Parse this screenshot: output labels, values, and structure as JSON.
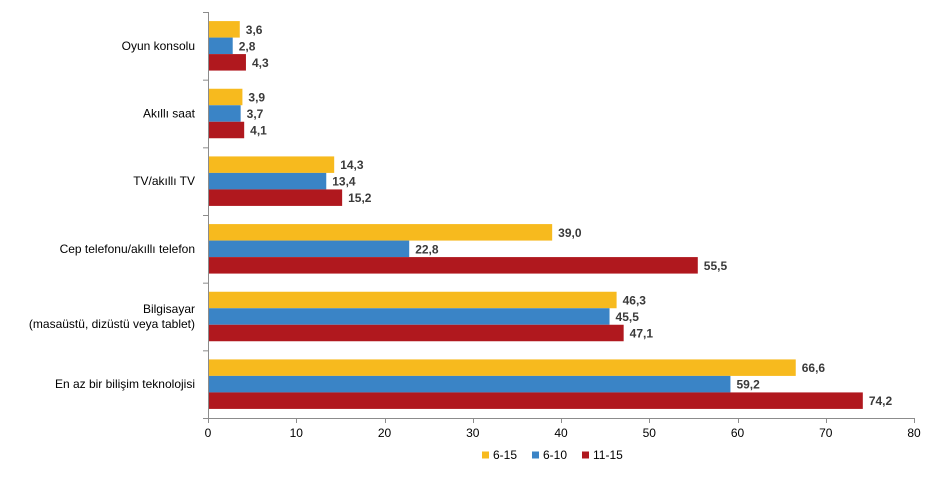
{
  "chart_data": {
    "type": "bar",
    "orientation": "horizontal",
    "title": "",
    "xlabel": "",
    "ylabel": "",
    "xlim": [
      0,
      80
    ],
    "x_ticks": [
      0,
      10,
      20,
      30,
      40,
      50,
      60,
      70,
      80
    ],
    "grid": false,
    "legend_position": "bottom",
    "categories": [
      [
        "Oyun konsolu"
      ],
      [
        "Akıllı saat"
      ],
      [
        "TV/akıllı TV"
      ],
      [
        "Cep telefonu/akıllı telefon"
      ],
      [
        "Bilgisayar",
        "(masaüstü, dizüstü veya tablet)"
      ],
      [
        "En az bir bilişim teknolojisi"
      ]
    ],
    "series": [
      {
        "name": "6-15",
        "color": "#F7BA1E",
        "values": [
          3.6,
          3.9,
          14.3,
          39.0,
          46.3,
          66.6
        ],
        "labels": [
          "3,6",
          "3,9",
          "14,3",
          "39,0",
          "46,3",
          "66,6"
        ]
      },
      {
        "name": "6-10",
        "color": "#3A84C6",
        "values": [
          2.8,
          3.7,
          13.4,
          22.8,
          45.5,
          59.2
        ],
        "labels": [
          "2,8",
          "3,7",
          "13,4",
          "22,8",
          "45,5",
          "59,2"
        ]
      },
      {
        "name": "11-15",
        "color": "#B0181E",
        "values": [
          4.3,
          4.1,
          15.2,
          55.5,
          47.1,
          74.2
        ],
        "labels": [
          "4,3",
          "4,1",
          "15,2",
          "55,5",
          "47,1",
          "74,2"
        ]
      }
    ]
  }
}
